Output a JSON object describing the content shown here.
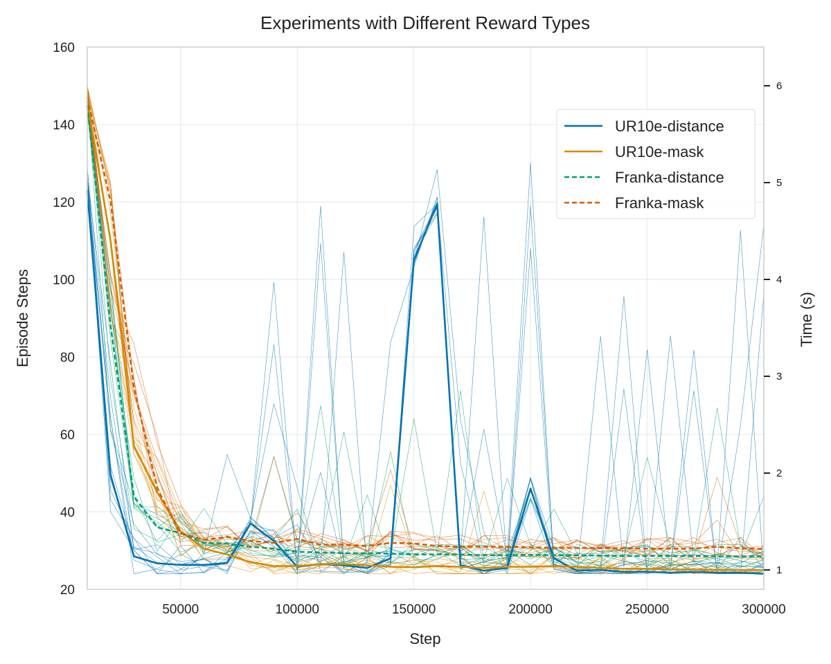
{
  "chart_data": {
    "type": "line",
    "title": "Experiments with Different Reward Types",
    "xlabel": "Step",
    "ylabel": "Episode Steps",
    "y2label": "Time (s)",
    "xlim": [
      10000,
      300000
    ],
    "ylim": [
      20,
      160
    ],
    "y2lim": [
      0.8,
      6.4
    ],
    "xticks": [
      50000,
      100000,
      150000,
      200000,
      250000,
      300000
    ],
    "yticks": [
      20,
      40,
      60,
      80,
      100,
      120,
      140,
      160
    ],
    "y2ticks": [
      1,
      2,
      3,
      4,
      5,
      6
    ],
    "grid": true,
    "legend_position": "top-right",
    "x": [
      10000,
      20000,
      30000,
      40000,
      50000,
      60000,
      70000,
      80000,
      90000,
      100000,
      110000,
      120000,
      130000,
      140000,
      150000,
      160000,
      170000,
      180000,
      190000,
      200000,
      210000,
      220000,
      230000,
      240000,
      250000,
      260000,
      270000,
      280000,
      290000,
      300000
    ],
    "series": [
      {
        "name": "UR10e-distance",
        "color": "#0072b2",
        "style": "solid",
        "values": [
          123,
          49.5,
          28.5,
          26.7,
          26.3,
          26.3,
          26.8,
          37,
          32.5,
          25.8,
          26.5,
          26.2,
          25.5,
          28,
          105,
          119.5,
          26.2,
          24.8,
          25.5,
          46,
          28,
          24.8,
          25,
          24.5,
          24.5,
          24.3,
          24.5,
          24.3,
          24.3,
          24
        ]
      },
      {
        "name": "UR10e-mask",
        "color": "#d48a00",
        "style": "solid",
        "values": [
          146,
          110,
          57,
          45,
          35,
          30.5,
          29,
          27,
          26,
          26,
          26.5,
          26.5,
          26.2,
          25.8,
          25.7,
          26,
          25.8,
          25.5,
          25.8,
          25.8,
          26,
          25.8,
          25.5,
          25.3,
          25.3,
          25.1,
          25.1,
          25,
          25,
          25
        ]
      },
      {
        "name": "Franka-distance",
        "color": "#009e73",
        "style": "dashed",
        "values": [
          145,
          88,
          44,
          36,
          34.5,
          32,
          31.8,
          31,
          30.5,
          29.7,
          29.5,
          29.3,
          29.3,
          29.2,
          29,
          29,
          29,
          28.8,
          28.8,
          28.9,
          28.8,
          28.8,
          28.7,
          28.6,
          28.6,
          28.6,
          28.6,
          28.5,
          28.5,
          28.5
        ]
      },
      {
        "name": "Franka-mask",
        "color": "#d55e00",
        "style": "dashed",
        "values": [
          147,
          120,
          72,
          46,
          34.5,
          32.8,
          33.5,
          32.5,
          32,
          33,
          31.5,
          31.5,
          31.2,
          32,
          31.8,
          31.2,
          31,
          31,
          31,
          30.8,
          30.7,
          30.7,
          30.6,
          30.6,
          30.5,
          30.5,
          30.5,
          31,
          30.6,
          30.4
        ]
      }
    ]
  }
}
